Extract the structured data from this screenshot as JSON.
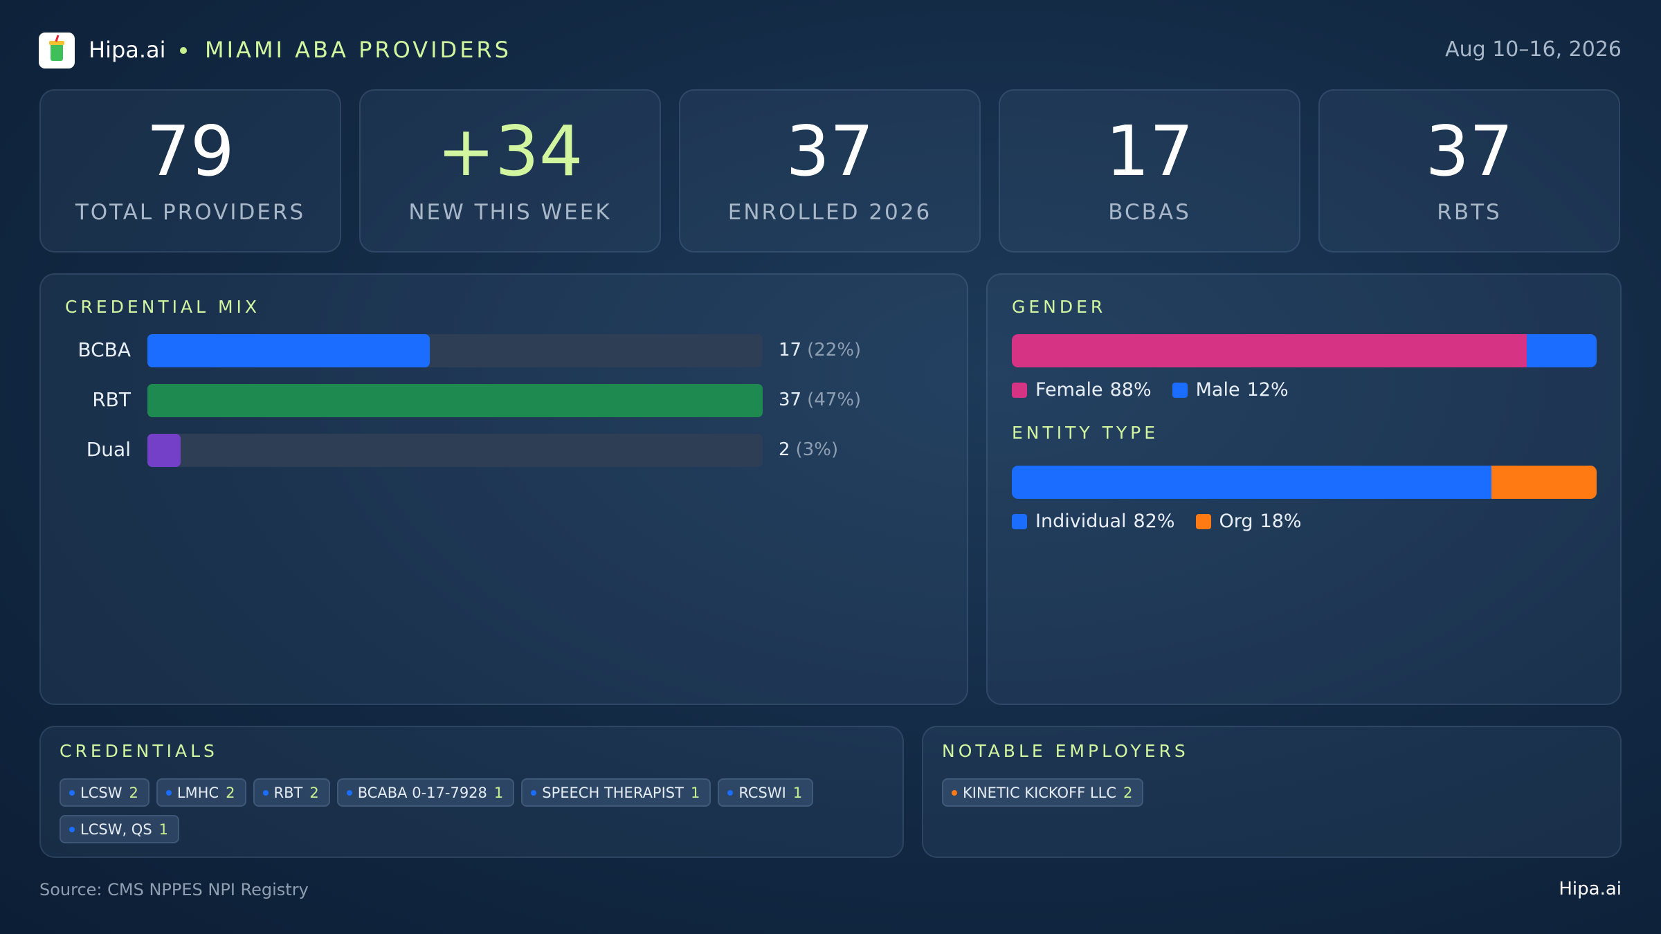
{
  "header": {
    "brand": "Hipa.ai",
    "title": "MIAMI ABA PROVIDERS",
    "date": "Aug 10–16, 2026"
  },
  "kpis": [
    {
      "value": "79",
      "label": "TOTAL PROVIDERS"
    },
    {
      "value": "+34",
      "label": "NEW THIS WEEK",
      "highlight": true
    },
    {
      "value": "37",
      "label": "ENROLLED 2026"
    },
    {
      "value": "17",
      "label": "BCBAS"
    },
    {
      "value": "37",
      "label": "RBTS"
    }
  ],
  "credential_mix": {
    "type": "bar",
    "title": "CREDENTIAL MIX",
    "categories": [
      "BCBA",
      "RBT",
      "Dual"
    ],
    "values": [
      17,
      37,
      2
    ],
    "share_labels": [
      "(22%)",
      "(47%)",
      "(3%)"
    ],
    "colors": [
      "#1a6dff",
      "#1e8a50",
      "#7440c8"
    ],
    "xlim": [
      0,
      37
    ]
  },
  "gender": {
    "type": "stacked-bar",
    "title": "GENDER",
    "xlim": [
      0,
      100
    ],
    "segments": [
      {
        "name": "Female",
        "value": 88,
        "value_label": "88%",
        "color": "#d63384"
      },
      {
        "name": "Male",
        "value": 12,
        "value_label": "12%",
        "color": "#1a6dff"
      }
    ]
  },
  "entity_type": {
    "type": "stacked-bar",
    "title": "ENTITY TYPE",
    "xlim": [
      0,
      100
    ],
    "segments": [
      {
        "name": "Individual",
        "value": 82,
        "value_label": "82%",
        "color": "#1a6dff"
      },
      {
        "name": "Org",
        "value": 18,
        "value_label": "18%",
        "color": "#ff7a12"
      }
    ]
  },
  "credentials": {
    "title": "CREDENTIALS",
    "dot_color": "#1a6dff",
    "tags": [
      {
        "name": "LCSW",
        "count": 2
      },
      {
        "name": "LMHC",
        "count": 2
      },
      {
        "name": "RBT",
        "count": 2
      },
      {
        "name": "BCABA 0-17-7928",
        "count": 1
      },
      {
        "name": "SPEECH THERAPIST",
        "count": 1
      },
      {
        "name": "RCSWI",
        "count": 1
      },
      {
        "name": "LCSW, QS",
        "count": 1
      }
    ]
  },
  "employers": {
    "title": "NOTABLE EMPLOYERS",
    "dot_color": "#ff7a12",
    "tags": [
      {
        "name": "KINETIC KICKOFF LLC",
        "count": 2
      }
    ]
  },
  "footer": {
    "source": "Source: CMS NPPES NPI Registry",
    "brand": "Hipa.ai"
  }
}
